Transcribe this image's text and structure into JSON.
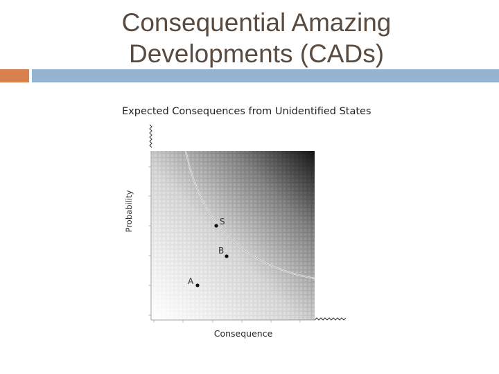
{
  "slide": {
    "title_line1": "Consequential Amazing",
    "title_line2": "Developments (CADs)"
  },
  "colors": {
    "accent_orange": "#d9804f",
    "accent_blue": "#95b4d1",
    "title_text": "#5a4b40"
  },
  "figure": {
    "title": "Expected Consequences from Unidentified States",
    "xlabel": "Consequence",
    "ylabel": "Probability",
    "points": [
      {
        "label": "S"
      },
      {
        "label": "B"
      },
      {
        "label": "A"
      }
    ]
  }
}
